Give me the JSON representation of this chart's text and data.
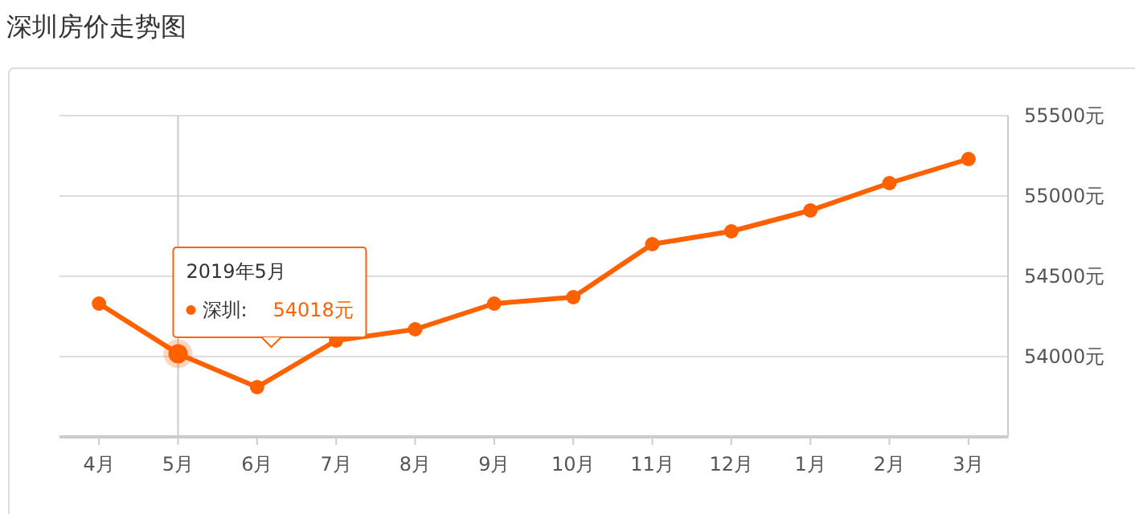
{
  "chart_data": {
    "type": "line",
    "title": "深圳房价走势图",
    "categories": [
      "4月",
      "5月",
      "6月",
      "7月",
      "8月",
      "9月",
      "10月",
      "11月",
      "12月",
      "1月",
      "2月",
      "3月"
    ],
    "annotations": [
      "2019年5月",
      "深圳:",
      "54018元"
    ],
    "series": [
      {
        "color": "#ff6100",
        "values": [
          54330,
          54018,
          53810,
          54100,
          54170,
          54330,
          54370,
          54700,
          54780,
          54910,
          55080,
          55230
        ]
      }
    ],
    "ylim": [
      53500,
      55500
    ],
    "yticks": [
      {
        "value": 53500,
        "label": null
      },
      {
        "value": 54000,
        "label": "54000元"
      },
      {
        "value": 54500,
        "label": "54500元"
      },
      {
        "value": 55000,
        "label": "55000元"
      },
      {
        "value": 55500,
        "label": "55500元"
      }
    ],
    "grid": "y",
    "marker": "circle",
    "line_style": "solid",
    "ref_lines": [
      {
        "axis": "x",
        "value": "5月",
        "color": "#cccccc"
      }
    ]
  }
}
